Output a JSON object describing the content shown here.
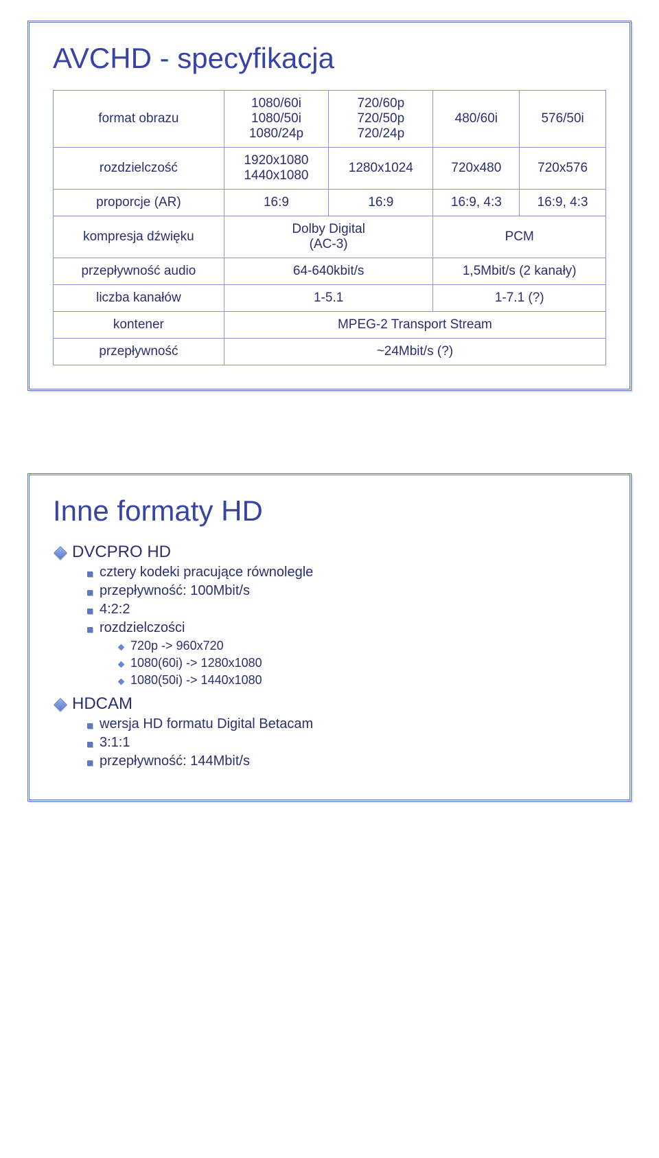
{
  "colors": {
    "title": "#3744a3",
    "text": "#2b2f6f",
    "border_outer": "#5b78c7",
    "border_cell": "#8a96ce",
    "bullet_diamond": "#5b78c7",
    "bullet_square": "#5b78c7",
    "bullet_dot": "#6a86d6",
    "background": "#ffffff"
  },
  "typography": {
    "title_fontsize": 42,
    "table_fontsize": 19,
    "l1_fontsize": 24,
    "l2_fontsize": 20,
    "l3_fontsize": 18,
    "font_family": "Verdana"
  },
  "slide1": {
    "title": "AVCHD - specyfikacja",
    "table": {
      "columns": 5,
      "rows": [
        {
          "label": "format obrazu",
          "c1": "1080/60i\n1080/50i\n1080/24p",
          "c2": "720/60p\n720/50p\n720/24p",
          "c3": "480/60i",
          "c4": "576/50i"
        },
        {
          "label": "rozdzielczość",
          "c1": "1920x1080\n1440x1080",
          "c2": "1280x1024",
          "c3": "720x480",
          "c4": "720x576"
        },
        {
          "label": "proporcje (AR)",
          "c1": "16:9",
          "c2": "16:9",
          "c3": "16:9, 4:3",
          "c4": "16:9, 4:3"
        },
        {
          "label": "kompresja dźwięku",
          "c1": "Dolby Digital\n(AC-3)",
          "c2_merged": "PCM"
        },
        {
          "label": "przepływność audio",
          "c1": "64-640kbit/s",
          "c2_merged": "1,5Mbit/s (2 kanały)"
        },
        {
          "label": "liczba kanałów",
          "c1": "1-5.1",
          "c2_merged": "1-7.1 (?)"
        },
        {
          "label": "kontener",
          "c_full": "MPEG-2 Transport Stream"
        },
        {
          "label": "przepływność",
          "c_full": "~24Mbit/s (?)"
        }
      ]
    }
  },
  "slide2": {
    "title": "Inne formaty HD",
    "items": [
      {
        "label": "DVCPRO HD",
        "children": [
          {
            "label": "cztery kodeki pracujące równolegle"
          },
          {
            "label": "przepływność: 100Mbit/s"
          },
          {
            "label": "4:2:2"
          },
          {
            "label": "rozdzielczości",
            "children": [
              {
                "label": "720p -> 960x720"
              },
              {
                "label": "1080(60i) -> 1280x1080"
              },
              {
                "label": "1080(50i) -> 1440x1080"
              }
            ]
          }
        ]
      },
      {
        "label": "HDCAM",
        "children": [
          {
            "label": "wersja HD formatu Digital Betacam"
          },
          {
            "label": "3:1:1"
          },
          {
            "label": "przepływność: 144Mbit/s"
          }
        ]
      }
    ]
  }
}
